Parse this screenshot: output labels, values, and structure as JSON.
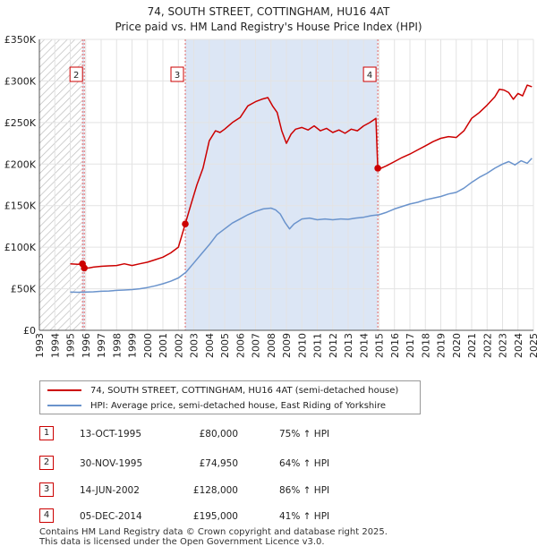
{
  "header": {
    "title": "74, SOUTH STREET, COTTINGHAM, HU16 4AT",
    "subtitle": "Price paid vs. HM Land Registry's House Price Index (HPI)"
  },
  "colors": {
    "property": "#cc0000",
    "hpi": "#6a93cc",
    "shade": "#dce6f5",
    "hatch": "#bdbdbd",
    "grid": "#e3e3e3",
    "marker_line": "#e06666"
  },
  "chart_data": {
    "type": "line",
    "title": "74, SOUTH STREET, COTTINGHAM, HU16 4AT",
    "subtitle": "Price paid vs. HM Land Registry's House Price Index (HPI)",
    "xlim": [
      1993,
      2025
    ],
    "ylim": [
      0,
      350000
    ],
    "x_ticks": [
      1993,
      1994,
      1995,
      1996,
      1997,
      1998,
      1999,
      2000,
      2001,
      2002,
      2003,
      2004,
      2005,
      2006,
      2007,
      2008,
      2009,
      2010,
      2011,
      2012,
      2013,
      2014,
      2015,
      2016,
      2017,
      2018,
      2019,
      2020,
      2021,
      2022,
      2023,
      2024,
      2025
    ],
    "y_ticks": [
      0,
      50000,
      100000,
      150000,
      200000,
      250000,
      300000,
      350000
    ],
    "y_tick_labels": [
      "£0",
      "£50K",
      "£100K",
      "£150K",
      "£200K",
      "£250K",
      "£300K",
      "£350K"
    ],
    "grid": true,
    "series": [
      {
        "name": "74, SOUTH STREET, COTTINGHAM, HU16 4AT (semi-detached house)",
        "x": [
          1995.0,
          1995.5,
          1995.79,
          1995.91,
          1996.2,
          1996.5,
          1997.0,
          1997.5,
          1998.0,
          1998.5,
          1999.0,
          1999.5,
          2000.0,
          2000.5,
          2001.0,
          2001.5,
          2002.0,
          2002.45,
          2002.8,
          2003.2,
          2003.6,
          2004.0,
          2004.4,
          2004.7,
          2005.0,
          2005.5,
          2006.0,
          2006.5,
          2007.0,
          2007.4,
          2007.8,
          2008.1,
          2008.4,
          2008.7,
          2009.0,
          2009.3,
          2009.6,
          2010.0,
          2010.4,
          2010.8,
          2011.2,
          2011.6,
          2012.0,
          2012.4,
          2012.8,
          2013.2,
          2013.6,
          2014.0,
          2014.4,
          2014.8,
          2014.92,
          2015.0,
          2015.5,
          2016.0,
          2016.5,
          2017.0,
          2017.5,
          2018.0,
          2018.5,
          2019.0,
          2019.5,
          2020.0,
          2020.5,
          2021.0,
          2021.5,
          2022.0,
          2022.5,
          2022.8,
          2023.1,
          2023.4,
          2023.7,
          2024.0,
          2024.3,
          2024.6,
          2024.9
        ],
        "y": [
          80000,
          79500,
          80000,
          74950,
          75000,
          76000,
          77000,
          77500,
          78000,
          80000,
          78000,
          80000,
          82000,
          85000,
          88000,
          93000,
          100000,
          128000,
          150000,
          175000,
          195000,
          228000,
          240000,
          238000,
          242000,
          250000,
          256000,
          270000,
          275000,
          278000,
          280000,
          270000,
          262000,
          240000,
          225000,
          236000,
          242000,
          244000,
          241000,
          246000,
          240000,
          243000,
          238000,
          241000,
          237000,
          242000,
          240000,
          246000,
          250000,
          255000,
          195000,
          194000,
          198000,
          203000,
          208000,
          212000,
          217000,
          222000,
          227000,
          231000,
          233000,
          232000,
          240000,
          255000,
          262000,
          271000,
          281000,
          290000,
          289000,
          286000,
          278000,
          285000,
          282000,
          295000,
          293000
        ]
      },
      {
        "name": "HPI: Average price, semi-detached house, East Riding of Yorkshire",
        "x": [
          1995.0,
          1995.5,
          1996.0,
          1996.5,
          1997.0,
          1997.5,
          1998.0,
          1998.5,
          1999.0,
          1999.5,
          2000.0,
          2000.5,
          2001.0,
          2001.5,
          2002.0,
          2002.5,
          2003.0,
          2003.5,
          2004.0,
          2004.5,
          2005.0,
          2005.5,
          2006.0,
          2006.5,
          2007.0,
          2007.5,
          2008.0,
          2008.3,
          2008.6,
          2008.9,
          2009.2,
          2009.5,
          2010.0,
          2010.5,
          2011.0,
          2011.5,
          2012.0,
          2012.5,
          2013.0,
          2013.5,
          2014.0,
          2014.5,
          2015.0,
          2015.5,
          2016.0,
          2016.5,
          2017.0,
          2017.5,
          2018.0,
          2018.5,
          2019.0,
          2019.5,
          2020.0,
          2020.5,
          2021.0,
          2021.5,
          2022.0,
          2022.5,
          2023.0,
          2023.4,
          2023.8,
          2024.2,
          2024.6,
          2024.9
        ],
        "y": [
          46000,
          45800,
          46000,
          46300,
          47000,
          47300,
          48000,
          48500,
          49000,
          50000,
          51500,
          53500,
          56000,
          59000,
          63000,
          70000,
          81000,
          92000,
          103000,
          115000,
          122000,
          129000,
          134000,
          139000,
          143000,
          146000,
          147000,
          145000,
          140000,
          130000,
          122000,
          128000,
          134000,
          135000,
          133000,
          134000,
          133000,
          134000,
          133500,
          135000,
          136000,
          138000,
          139000,
          142000,
          146000,
          149000,
          152000,
          154000,
          157000,
          159000,
          161000,
          164000,
          166000,
          171000,
          178000,
          184000,
          189000,
          195000,
          200000,
          203000,
          199000,
          204000,
          201000,
          207000
        ]
      }
    ],
    "transactions": [
      {
        "num": "1",
        "date": "13-OCT-1995",
        "price": "£80,000",
        "hpi": "75% ↑ HPI",
        "x": 1995.79,
        "y": 80000
      },
      {
        "num": "2",
        "date": "30-NOV-1995",
        "price": "£74,950",
        "hpi": "64% ↑ HPI",
        "x": 1995.91,
        "y": 74950
      },
      {
        "num": "3",
        "date": "14-JUN-2002",
        "price": "£128,000",
        "hpi": "86% ↑ HPI",
        "x": 2002.45,
        "y": 128000
      },
      {
        "num": "4",
        "date": "05-DEC-2014",
        "price": "£195,000",
        "hpi": "41% ↑ HPI",
        "x": 2014.92,
        "y": 195000
      }
    ],
    "chart_markers": [
      "2",
      "3",
      "4"
    ]
  },
  "footer": {
    "line1": "Contains HM Land Registry data © Crown copyright and database right 2025.",
    "line2": "This data is licensed under the Open Government Licence v3.0."
  }
}
